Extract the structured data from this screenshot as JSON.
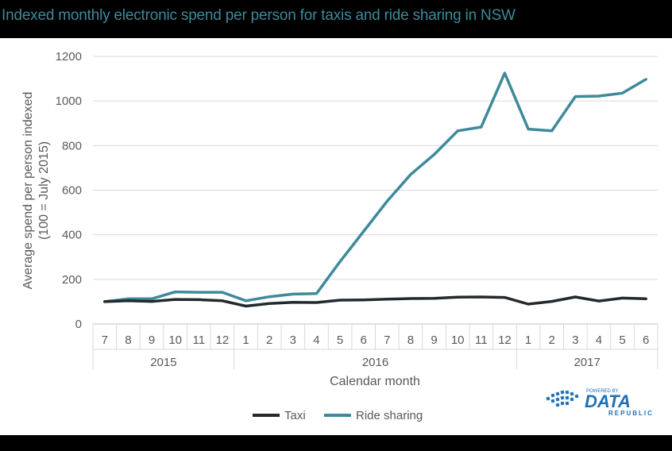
{
  "title": "Indexed monthly electronic spend per person for taxis and ride sharing in NSW",
  "logo": {
    "small_text": "POWERED BY",
    "main_text": "DATA",
    "sub_text": "REPUBLIC"
  },
  "colors": {
    "taxi": "#232a2f",
    "ride_sharing": "#3e8a9a",
    "axis_text": "#595959",
    "grid": "#d9d9d9",
    "title": "#3e8a9a",
    "logo": "#1d6fb8"
  },
  "chart_data": {
    "type": "line",
    "title": "Indexed monthly electronic spend per person for taxis and ride sharing in NSW",
    "xlabel": "Calendar month",
    "ylabel": "Average spend per person indexed",
    "ylabel2": "(100 = July 2015)",
    "ylim": [
      0,
      1200
    ],
    "yticks": [
      0,
      200,
      400,
      600,
      800,
      1000,
      1200
    ],
    "grid": "horizontal",
    "legend_position": "bottom",
    "categories": [
      "7",
      "8",
      "9",
      "10",
      "11",
      "12",
      "1",
      "2",
      "3",
      "4",
      "5",
      "6",
      "7",
      "8",
      "9",
      "10",
      "11",
      "12",
      "1",
      "2",
      "3",
      "4",
      "5",
      "6"
    ],
    "year_groups": [
      {
        "label": "2015",
        "count": 6
      },
      {
        "label": "2016",
        "count": 12
      },
      {
        "label": "2017",
        "count": 6
      }
    ],
    "series": [
      {
        "name": "Taxi",
        "values": [
          100,
          104,
          101,
          110,
          109,
          104,
          80,
          92,
          97,
          96,
          107,
          108,
          111,
          114,
          115,
          120,
          121,
          119,
          89,
          101,
          121,
          103,
          116,
          113
        ]
      },
      {
        "name": "Ride sharing",
        "values": [
          100,
          113,
          113,
          144,
          142,
          142,
          104,
          122,
          134,
          136,
          280,
          415,
          550,
          670,
          760,
          866,
          883,
          1125,
          874,
          866,
          1020,
          1022,
          1035,
          1097
        ]
      }
    ]
  }
}
